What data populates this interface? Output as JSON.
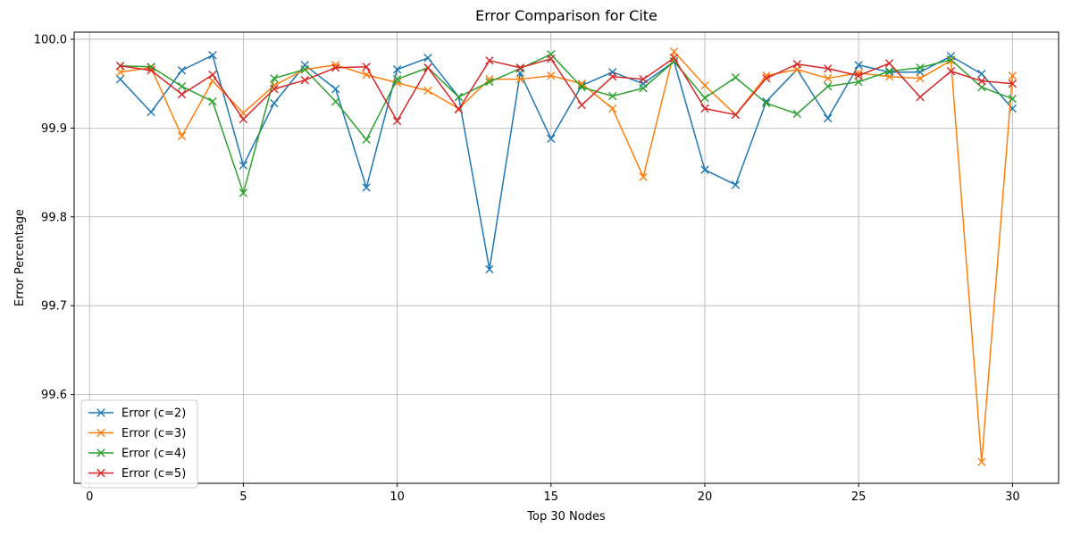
{
  "chart_data": {
    "type": "line",
    "title": "Error Comparison for Cite",
    "xlabel": "Top 30 Nodes",
    "ylabel": "Error Percentage",
    "xlim": [
      -0.5,
      31.5
    ],
    "ylim": [
      99.5,
      100.008
    ],
    "xticks": [
      0,
      5,
      10,
      15,
      20,
      25,
      30
    ],
    "yticks": [
      99.6,
      99.7,
      99.8,
      99.9,
      100.0
    ],
    "ytick_labels": [
      "99.6",
      "99.7",
      "99.8",
      "99.9",
      "100.0"
    ],
    "grid": true,
    "legend_position": "bottom-left",
    "marker": "x",
    "x": [
      1,
      2,
      3,
      4,
      5,
      6,
      7,
      8,
      9,
      10,
      11,
      12,
      13,
      14,
      15,
      16,
      17,
      18,
      19,
      20,
      21,
      22,
      23,
      24,
      25,
      26,
      27,
      28,
      29,
      30
    ],
    "series": [
      {
        "name": "Error (c=2)",
        "color": "#1f77b4",
        "values": [
          99.955,
          99.918,
          99.965,
          99.982,
          99.858,
          99.928,
          99.971,
          99.944,
          99.833,
          99.966,
          99.979,
          99.935,
          99.741,
          99.962,
          99.888,
          99.948,
          99.963,
          99.95,
          99.975,
          99.853,
          99.836,
          99.93,
          99.966,
          99.911,
          99.971,
          99.963,
          99.963,
          99.981,
          99.961,
          99.922
        ]
      },
      {
        "name": "Error (c=3)",
        "color": "#ff7f0e",
        "values": [
          99.963,
          99.968,
          99.891,
          99.953,
          99.917,
          99.948,
          99.966,
          99.971,
          99.96,
          99.951,
          99.942,
          99.922,
          99.955,
          99.955,
          99.959,
          99.95,
          99.922,
          99.845,
          99.986,
          99.948,
          99.915,
          99.959,
          99.966,
          99.956,
          99.962,
          99.958,
          99.956,
          99.976,
          99.524,
          99.959
        ]
      },
      {
        "name": "Error (c=4)",
        "color": "#2ca02c",
        "values": [
          99.97,
          99.969,
          99.947,
          99.93,
          99.827,
          99.956,
          99.966,
          99.93,
          99.887,
          99.955,
          99.968,
          99.935,
          99.952,
          99.967,
          99.983,
          99.946,
          99.936,
          99.945,
          99.975,
          99.934,
          99.957,
          99.928,
          99.916,
          99.947,
          99.952,
          99.964,
          99.968,
          99.977,
          99.946,
          99.933
        ]
      },
      {
        "name": "Error (c=5)",
        "color": "#d62728",
        "values": [
          99.97,
          99.965,
          99.938,
          99.96,
          99.91,
          99.944,
          99.954,
          99.968,
          99.969,
          99.908,
          99.968,
          99.921,
          99.976,
          99.968,
          99.978,
          99.926,
          99.958,
          99.955,
          99.979,
          99.922,
          99.915,
          99.956,
          99.972,
          99.967,
          99.959,
          99.973,
          99.935,
          99.964,
          99.953,
          99.95
        ]
      }
    ]
  }
}
